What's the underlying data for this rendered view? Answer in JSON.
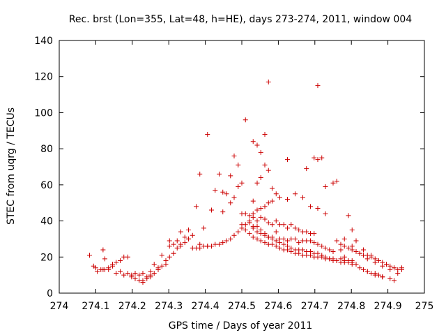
{
  "chart_data": {
    "type": "scatter",
    "title": "Rec. brst (Lon=355, Lat=48, h=HE), days 273-274, 2011, window 004",
    "xlabel": "GPS time / Days of year 2011",
    "ylabel": "STEC from uqrg / TECUs",
    "xlim": [
      274,
      275
    ],
    "ylim": [
      0,
      140
    ],
    "x_ticks": [
      274,
      274.1,
      274.2,
      274.3,
      274.4,
      274.5,
      274.6,
      274.7,
      274.8,
      274.9,
      275
    ],
    "x_tick_labels": [
      "274",
      "274.1",
      "274.2",
      "274.3",
      "274.4",
      "274.5",
      "274.6",
      "274.7",
      "274.8",
      "274.9",
      "275"
    ],
    "y_ticks": [
      0,
      20,
      40,
      60,
      80,
      100,
      120,
      140
    ],
    "y_tick_labels": [
      "0",
      "20",
      "40",
      "60",
      "80",
      "100",
      "120",
      "140"
    ],
    "grid": false,
    "legend": "none",
    "marker": "+",
    "marker_color": "#cc0000",
    "x": [
      274.083,
      274.094,
      274.104,
      274.114,
      274.12,
      274.125,
      274.135,
      274.146,
      274.156,
      274.167,
      274.177,
      274.188,
      274.1,
      274.125,
      274.146,
      274.167,
      274.188,
      274.198,
      274.12,
      274.135,
      274.156,
      274.177,
      274.198,
      274.208,
      274.219,
      274.229,
      274.24,
      274.25,
      274.208,
      274.229,
      274.25,
      274.271,
      274.292,
      274.219,
      274.24,
      274.26,
      274.271,
      274.281,
      274.292,
      274.302,
      274.313,
      274.323,
      274.333,
      274.344,
      274.354,
      274.365,
      274.229,
      274.25,
      274.271,
      274.292,
      274.313,
      274.333,
      274.354,
      274.26,
      274.281,
      274.302,
      274.323,
      274.344,
      274.365,
      274.385,
      274.406,
      274.417,
      274.427,
      274.438,
      274.448,
      274.458,
      274.469,
      274.479,
      274.49,
      274.302,
      274.313,
      274.333,
      274.354,
      274.375,
      274.385,
      274.396,
      274.406,
      274.375,
      274.385,
      274.396,
      274.406,
      274.417,
      274.427,
      274.438,
      274.448,
      274.458,
      274.469,
      274.479,
      274.49,
      274.5,
      274.448,
      274.469,
      274.479,
      274.49,
      274.5,
      274.51,
      274.5,
      274.51,
      274.521,
      274.531,
      274.542,
      274.552,
      274.563,
      274.573,
      274.583,
      274.594,
      274.604,
      274.615,
      274.625,
      274.635,
      274.646,
      274.656,
      274.667,
      274.677,
      274.688,
      274.698,
      274.708,
      274.719,
      274.729,
      274.74,
      274.75,
      274.76,
      274.771,
      274.781,
      274.792,
      274.802,
      274.5,
      274.51,
      274.521,
      274.531,
      274.542,
      274.552,
      274.563,
      274.573,
      274.583,
      274.594,
      274.604,
      274.615,
      274.625,
      274.635,
      274.646,
      274.656,
      274.667,
      274.677,
      274.688,
      274.698,
      274.708,
      274.719,
      274.729,
      274.74,
      274.75,
      274.76,
      274.771,
      274.781,
      274.792,
      274.802,
      274.51,
      274.521,
      274.531,
      274.542,
      274.552,
      274.563,
      274.573,
      274.583,
      274.594,
      274.604,
      274.615,
      274.625,
      274.635,
      274.646,
      274.656,
      274.667,
      274.677,
      274.688,
      274.698,
      274.708,
      274.719,
      274.729,
      274.74,
      274.75,
      274.521,
      274.531,
      274.542,
      274.552,
      274.563,
      274.573,
      274.583,
      274.594,
      274.604,
      274.615,
      274.625,
      274.635,
      274.646,
      274.656,
      274.667,
      274.677,
      274.688,
      274.698,
      274.521,
      274.531,
      274.542,
      274.552,
      274.563,
      274.573,
      274.583,
      274.604,
      274.625,
      274.646,
      274.667,
      274.688,
      274.708,
      274.729,
      274.531,
      274.542,
      274.552,
      274.563,
      274.573,
      274.583,
      274.594,
      274.625,
      274.677,
      274.698,
      274.708,
      274.719,
      274.729,
      274.75,
      274.76,
      274.531,
      274.542,
      274.552,
      274.563,
      274.573,
      274.708,
      274.76,
      274.771,
      274.781,
      274.792,
      274.802,
      274.813,
      274.823,
      274.833,
      274.844,
      274.854,
      274.865,
      274.875,
      274.885,
      274.896,
      274.906,
      274.917,
      274.927,
      274.938,
      274.771,
      274.781,
      274.792,
      274.802,
      274.813,
      274.823,
      274.833,
      274.844,
      274.854,
      274.865,
      274.875,
      274.885,
      274.781,
      274.802,
      274.823,
      274.844,
      274.865,
      274.885,
      274.906,
      274.927,
      274.792,
      274.802,
      274.813,
      274.833,
      274.854,
      274.875,
      274.896,
      274.917,
      274.938,
      274.844,
      274.865,
      274.885,
      274.906,
      274.917
    ],
    "y": [
      21,
      15,
      12,
      13,
      24,
      13,
      14,
      15,
      17,
      18,
      20,
      20,
      14,
      19,
      16,
      12,
      11,
      10,
      13,
      13,
      11,
      10,
      9,
      8,
      7,
      6,
      8,
      9,
      11,
      11,
      12,
      13,
      16,
      10,
      9,
      11,
      13,
      15,
      18,
      20,
      22,
      25,
      27,
      28,
      30,
      32,
      7,
      10,
      14,
      18,
      22,
      26,
      30,
      16,
      21,
      26,
      29,
      31,
      25,
      27,
      26,
      26,
      27,
      27,
      28,
      29,
      30,
      32,
      34,
      29,
      27,
      34,
      35,
      48,
      66,
      36,
      88,
      25,
      25,
      26,
      26,
      46,
      57,
      66,
      56,
      55,
      65,
      76,
      71,
      44,
      45,
      50,
      53,
      59,
      61,
      96,
      36,
      38,
      33,
      31,
      30,
      29,
      28,
      27,
      27,
      26,
      25,
      24,
      24,
      23,
      22,
      22,
      21,
      21,
      21,
      20,
      20,
      20,
      19,
      19,
      18,
      18,
      17,
      17,
      17,
      16,
      38,
      35,
      39,
      36,
      34,
      33,
      32,
      31,
      31,
      29,
      28,
      27,
      26,
      25,
      24,
      24,
      24,
      23,
      23,
      22,
      22,
      21,
      20,
      19,
      19,
      18,
      19,
      18,
      18,
      18,
      44,
      39,
      37,
      37,
      35,
      33,
      31,
      30,
      34,
      30,
      30,
      29,
      30,
      30,
      28,
      29,
      29,
      29,
      28,
      27,
      26,
      25,
      24,
      23,
      40,
      42,
      40,
      42,
      41,
      39,
      38,
      40,
      38,
      38,
      36,
      38,
      36,
      35,
      34,
      34,
      33,
      33,
      43,
      44,
      46,
      47,
      48,
      50,
      51,
      53,
      52,
      55,
      53,
      48,
      47,
      44,
      51,
      61,
      64,
      71,
      68,
      58,
      55,
      74,
      69,
      75,
      74,
      75,
      59,
      61,
      62,
      84,
      82,
      78,
      88,
      117,
      115,
      29,
      27,
      26,
      25,
      24,
      23,
      22,
      21,
      21,
      20,
      19,
      18,
      17,
      16,
      15,
      14,
      13,
      14,
      24,
      20,
      18,
      17,
      16,
      14,
      13,
      12,
      11,
      11,
      10,
      9,
      30,
      26,
      22,
      19,
      17,
      15,
      13,
      11,
      43,
      35,
      29,
      24,
      21,
      18,
      16,
      14,
      13,
      12,
      10,
      9,
      8,
      7
    ]
  }
}
